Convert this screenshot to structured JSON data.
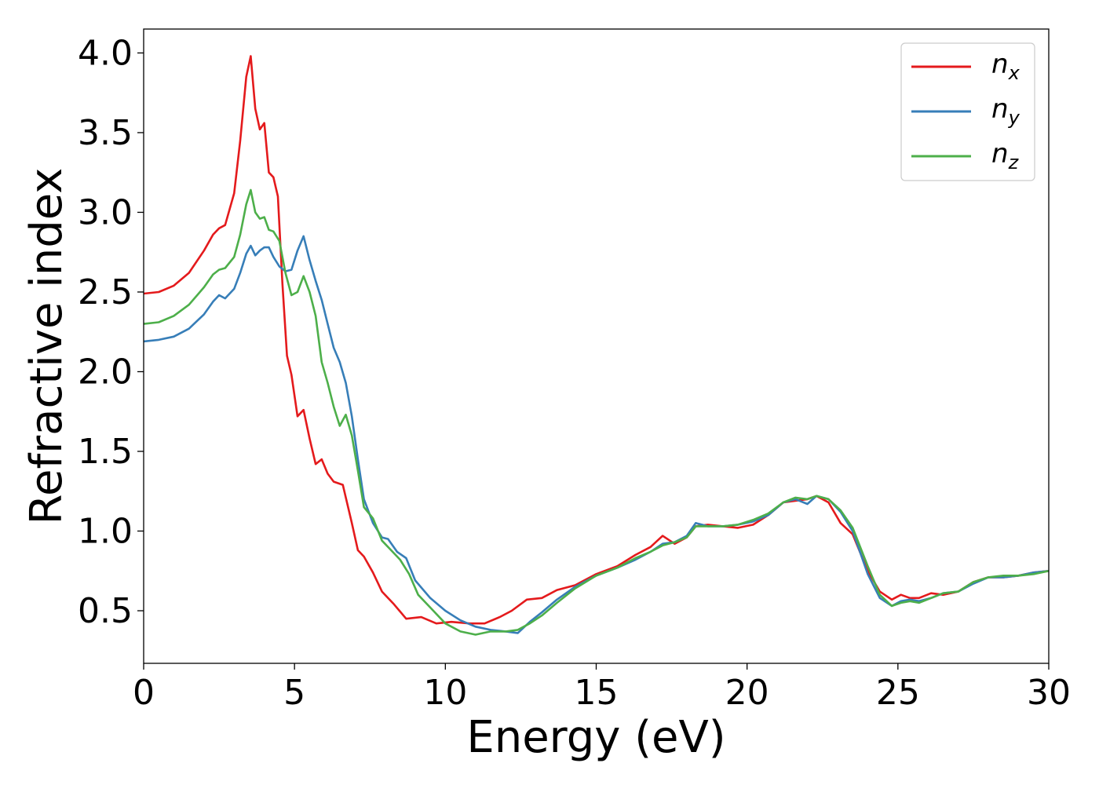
{
  "chart_data": {
    "type": "line",
    "xlabel": "Energy (eV)",
    "ylabel": "Refractive index",
    "xlim": [
      0,
      30
    ],
    "ylim": [
      0.17,
      4.15
    ],
    "grid": false,
    "legend_position": "top-right",
    "x_ticks": [
      "0",
      "5",
      "10",
      "15",
      "20",
      "25",
      "30"
    ],
    "y_ticks": [
      "0.5",
      "1.0",
      "1.5",
      "2.0",
      "2.5",
      "3.0",
      "3.5",
      "4.0"
    ],
    "series": [
      {
        "name": "n_x",
        "label_base": "n",
        "label_sub": "x",
        "color": "#e41a1c",
        "x": [
          0,
          0.5,
          1,
          1.5,
          2,
          2.3,
          2.5,
          2.7,
          3,
          3.2,
          3.4,
          3.55,
          3.7,
          3.85,
          4,
          4.15,
          4.3,
          4.45,
          4.6,
          4.75,
          4.9,
          5.1,
          5.3,
          5.5,
          5.7,
          5.9,
          6.1,
          6.3,
          6.6,
          6.9,
          7.1,
          7.3,
          7.6,
          7.9,
          8.3,
          8.7,
          9.2,
          9.7,
          10.2,
          10.8,
          11.3,
          11.8,
          12.2,
          12.7,
          13.2,
          13.7,
          14.3,
          15,
          15.7,
          16.3,
          16.8,
          17.2,
          17.6,
          18,
          18.3,
          18.7,
          19.2,
          19.7,
          20.2,
          20.7,
          21.2,
          21.6,
          22,
          22.3,
          22.7,
          23.1,
          23.5,
          24,
          24.4,
          24.8,
          25.1,
          25.4,
          25.7,
          26.1,
          26.5,
          27,
          27.5,
          28,
          28.5,
          29,
          29.5,
          30
        ],
        "y": [
          2.49,
          2.5,
          2.54,
          2.62,
          2.76,
          2.86,
          2.9,
          2.92,
          3.12,
          3.45,
          3.85,
          3.98,
          3.65,
          3.52,
          3.56,
          3.25,
          3.22,
          3.1,
          2.55,
          2.1,
          1.98,
          1.72,
          1.76,
          1.58,
          1.42,
          1.45,
          1.36,
          1.31,
          1.29,
          1.05,
          0.88,
          0.84,
          0.74,
          0.62,
          0.54,
          0.45,
          0.46,
          0.42,
          0.43,
          0.42,
          0.42,
          0.46,
          0.5,
          0.57,
          0.58,
          0.63,
          0.66,
          0.73,
          0.78,
          0.85,
          0.9,
          0.97,
          0.92,
          0.96,
          1.03,
          1.04,
          1.03,
          1.02,
          1.04,
          1.1,
          1.18,
          1.19,
          1.2,
          1.22,
          1.18,
          1.05,
          0.98,
          0.75,
          0.62,
          0.57,
          0.6,
          0.58,
          0.58,
          0.61,
          0.6,
          0.62,
          0.68,
          0.71,
          0.71,
          0.72,
          0.74,
          0.75
        ]
      },
      {
        "name": "n_y",
        "label_base": "n",
        "label_sub": "y",
        "color": "#377eb8",
        "x": [
          0,
          0.5,
          1,
          1.5,
          2,
          2.3,
          2.5,
          2.7,
          3,
          3.2,
          3.4,
          3.55,
          3.7,
          3.85,
          4,
          4.15,
          4.3,
          4.5,
          4.7,
          4.9,
          5.1,
          5.3,
          5.5,
          5.7,
          5.9,
          6.1,
          6.3,
          6.5,
          6.7,
          6.9,
          7.1,
          7.3,
          7.6,
          7.9,
          8.1,
          8.4,
          8.7,
          9,
          9.5,
          10,
          10.5,
          11,
          11.5,
          12,
          12.4,
          12.8,
          13.2,
          13.7,
          14.3,
          15,
          15.7,
          16.3,
          16.8,
          17.2,
          17.6,
          18,
          18.3,
          18.7,
          19.2,
          19.7,
          20.2,
          20.7,
          21.2,
          21.6,
          22,
          22.3,
          22.7,
          23.1,
          23.5,
          24,
          24.4,
          24.8,
          25.1,
          25.4,
          25.7,
          26.1,
          26.5,
          27,
          27.5,
          28,
          28.5,
          29,
          29.5,
          30
        ],
        "y": [
          2.19,
          2.2,
          2.22,
          2.27,
          2.36,
          2.44,
          2.48,
          2.46,
          2.52,
          2.62,
          2.74,
          2.79,
          2.73,
          2.76,
          2.78,
          2.78,
          2.72,
          2.66,
          2.63,
          2.64,
          2.76,
          2.85,
          2.7,
          2.57,
          2.45,
          2.3,
          2.15,
          2.06,
          1.93,
          1.72,
          1.45,
          1.2,
          1.05,
          0.96,
          0.95,
          0.87,
          0.83,
          0.69,
          0.58,
          0.5,
          0.44,
          0.4,
          0.38,
          0.37,
          0.36,
          0.43,
          0.49,
          0.57,
          0.65,
          0.72,
          0.77,
          0.82,
          0.87,
          0.92,
          0.93,
          0.97,
          1.05,
          1.03,
          1.03,
          1.04,
          1.06,
          1.1,
          1.18,
          1.2,
          1.17,
          1.22,
          1.2,
          1.12,
          1.0,
          0.73,
          0.58,
          0.53,
          0.56,
          0.57,
          0.56,
          0.58,
          0.61,
          0.62,
          0.67,
          0.71,
          0.71,
          0.72,
          0.74,
          0.75
        ]
      },
      {
        "name": "n_z",
        "label_base": "n",
        "label_sub": "z",
        "color": "#4daf4a",
        "x": [
          0,
          0.5,
          1,
          1.5,
          2,
          2.3,
          2.5,
          2.7,
          3,
          3.2,
          3.4,
          3.55,
          3.7,
          3.85,
          4,
          4.15,
          4.3,
          4.5,
          4.7,
          4.9,
          5.1,
          5.3,
          5.5,
          5.7,
          5.9,
          6.1,
          6.3,
          6.5,
          6.7,
          6.9,
          7.1,
          7.3,
          7.6,
          7.9,
          8.2,
          8.5,
          8.8,
          9.1,
          9.5,
          10,
          10.5,
          11,
          11.5,
          12,
          12.4,
          12.8,
          13.2,
          13.7,
          14.3,
          15,
          15.7,
          16.3,
          16.8,
          17.2,
          17.6,
          18,
          18.3,
          18.7,
          19.2,
          19.7,
          20.2,
          20.7,
          21.2,
          21.6,
          22,
          22.3,
          22.7,
          23.1,
          23.5,
          24,
          24.4,
          24.8,
          25.1,
          25.4,
          25.7,
          26.1,
          26.5,
          27,
          27.5,
          28,
          28.5,
          29,
          29.5,
          30
        ],
        "y": [
          2.3,
          2.31,
          2.35,
          2.42,
          2.53,
          2.61,
          2.64,
          2.65,
          2.72,
          2.86,
          3.05,
          3.14,
          3.0,
          2.96,
          2.97,
          2.89,
          2.88,
          2.82,
          2.62,
          2.48,
          2.5,
          2.6,
          2.5,
          2.35,
          2.06,
          1.93,
          1.78,
          1.66,
          1.73,
          1.6,
          1.38,
          1.15,
          1.08,
          0.94,
          0.88,
          0.82,
          0.73,
          0.6,
          0.52,
          0.42,
          0.37,
          0.35,
          0.37,
          0.37,
          0.38,
          0.42,
          0.47,
          0.55,
          0.64,
          0.72,
          0.77,
          0.83,
          0.87,
          0.91,
          0.93,
          0.96,
          1.03,
          1.03,
          1.03,
          1.04,
          1.07,
          1.11,
          1.18,
          1.21,
          1.2,
          1.22,
          1.2,
          1.13,
          1.02,
          0.78,
          0.6,
          0.53,
          0.55,
          0.56,
          0.55,
          0.58,
          0.61,
          0.62,
          0.68,
          0.71,
          0.72,
          0.72,
          0.73,
          0.75
        ]
      }
    ]
  }
}
